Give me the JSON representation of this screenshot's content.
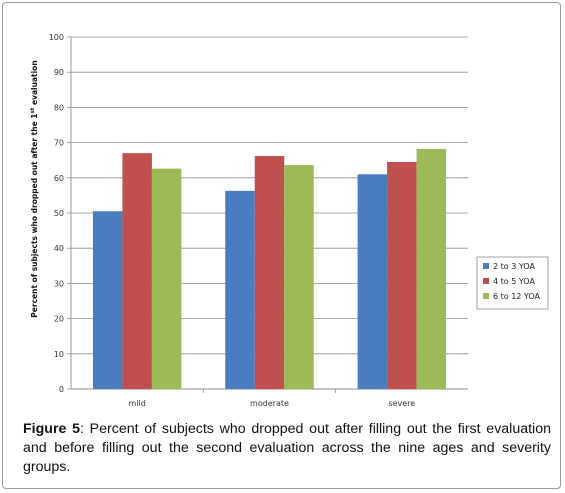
{
  "chart_data": {
    "type": "bar",
    "ylabel_parts": [
      "Percent of subjects who dropped out after the 1",
      "st",
      " evaluation"
    ],
    "ylim": [
      0,
      100
    ],
    "yticks": [
      "0",
      "10",
      "20",
      "30",
      "40",
      "50",
      "60",
      "70",
      "80",
      "90",
      "100"
    ],
    "categories": [
      "mild",
      "moderate",
      "severe"
    ],
    "series": [
      {
        "name": "2 to 3 YOA",
        "color": "#4a7dc0",
        "values": [
          50.5,
          56.3,
          61.0
        ]
      },
      {
        "name": "4 to 5 YOA",
        "color": "#c0504d",
        "values": [
          67.0,
          66.2,
          64.5
        ]
      },
      {
        "name": "6 to 12 YOA",
        "color": "#9bbb59",
        "values": [
          62.6,
          63.6,
          68.2
        ]
      }
    ],
    "grid": true,
    "legend_position": "right"
  },
  "caption": {
    "label": "Figure 5",
    "text": ": Percent of subjects who dropped out after filling out the first evaluation and before filling out the second evaluation across the nine ages and severity groups."
  }
}
